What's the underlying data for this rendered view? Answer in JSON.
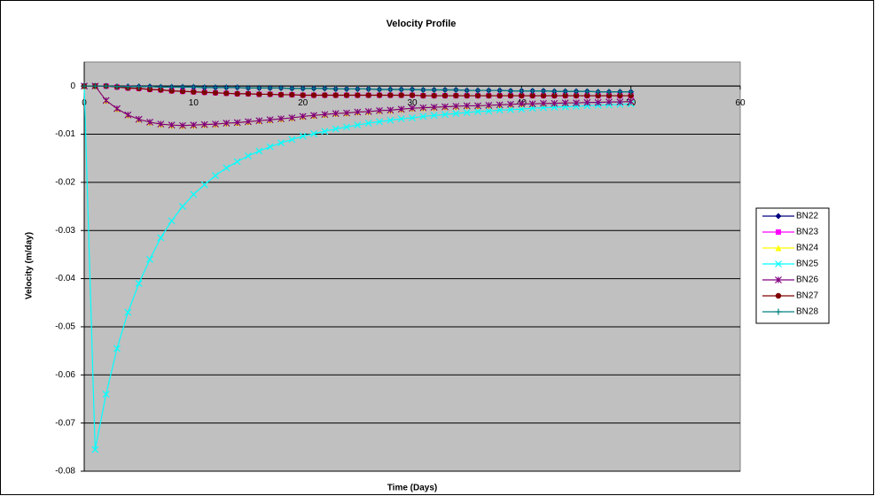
{
  "chart_data": {
    "type": "line",
    "title": "Velocity Profile",
    "x_label": "Time (Days)",
    "y_label": "Velocity (m/day)",
    "x": [
      0,
      1,
      2,
      3,
      4,
      5,
      6,
      7,
      8,
      9,
      10,
      11,
      12,
      13,
      14,
      15,
      16,
      17,
      18,
      19,
      20,
      21,
      22,
      23,
      24,
      25,
      26,
      27,
      28,
      29,
      30,
      31,
      32,
      33,
      34,
      35,
      36,
      37,
      38,
      39,
      40,
      41,
      42,
      43,
      44,
      45,
      46,
      47,
      48,
      49,
      50
    ],
    "xlim": [
      0,
      60
    ],
    "xticks": [
      0,
      10,
      20,
      30,
      40,
      50,
      60
    ],
    "ylim": [
      -0.08,
      0.005
    ],
    "yticks": [
      0,
      -0.01,
      -0.02,
      -0.03,
      -0.04,
      -0.05,
      -0.06,
      -0.07,
      -0.08
    ],
    "grid": true,
    "legend": "right",
    "series": [
      {
        "name": "BN22",
        "color": "#000080",
        "marker": "diamond",
        "values": [
          0,
          0,
          0,
          -0.0001,
          -0.0001,
          -0.0001,
          -0.0001,
          -0.0002,
          -0.0002,
          -0.0002,
          -0.0002,
          -0.0003,
          -0.0003,
          -0.0003,
          -0.0003,
          -0.0004,
          -0.0004,
          -0.0004,
          -0.0004,
          -0.0005,
          -0.0005,
          -0.0005,
          -0.0005,
          -0.0006,
          -0.0006,
          -0.0006,
          -0.0006,
          -0.0007,
          -0.0007,
          -0.0007,
          -0.0007,
          -0.0008,
          -0.0008,
          -0.0008,
          -0.0008,
          -0.0009,
          -0.0009,
          -0.0009,
          -0.0009,
          -0.001,
          -0.001,
          -0.001,
          -0.001,
          -0.0011,
          -0.0011,
          -0.0011,
          -0.0011,
          -0.0012,
          -0.0012,
          -0.0012,
          -0.0012
        ]
      },
      {
        "name": "BN23",
        "color": "#ff00ff",
        "marker": "square",
        "values": [
          0,
          0,
          0,
          -0.0002,
          -0.0004,
          -0.0005,
          -0.0007,
          -0.0008,
          -0.001,
          -0.0011,
          -0.0012,
          -0.0013,
          -0.0014,
          -0.0015,
          -0.0016,
          -0.0016,
          -0.0017,
          -0.0017,
          -0.0018,
          -0.0018,
          -0.0019,
          -0.0019,
          -0.0019,
          -0.0019,
          -0.0019,
          -0.0019,
          -0.0019,
          -0.0019,
          -0.0019,
          -0.0019,
          -0.0019,
          -0.002,
          -0.002,
          -0.002,
          -0.002,
          -0.002,
          -0.002,
          -0.002,
          -0.002,
          -0.002,
          -0.002,
          -0.002,
          -0.002,
          -0.002,
          -0.002,
          -0.002,
          -0.002,
          -0.002,
          -0.002,
          -0.002,
          -0.002
        ]
      },
      {
        "name": "BN24",
        "color": "#ffff00",
        "marker": "triangle",
        "values": [
          0,
          0,
          -0.003,
          -0.0047,
          -0.006,
          -0.0069,
          -0.0075,
          -0.0079,
          -0.0081,
          -0.0082,
          -0.0081,
          -0.008,
          -0.0079,
          -0.0077,
          -0.0076,
          -0.0074,
          -0.0072,
          -0.007,
          -0.0068,
          -0.0066,
          -0.0063,
          -0.0061,
          -0.0059,
          -0.0057,
          -0.0056,
          -0.0054,
          -0.0053,
          -0.0051,
          -0.005,
          -0.0048,
          -0.0046,
          -0.0045,
          -0.0044,
          -0.0043,
          -0.0042,
          -0.0041,
          -0.0041,
          -0.004,
          -0.0039,
          -0.0038,
          -0.0037,
          -0.0037,
          -0.0036,
          -0.0036,
          -0.0035,
          -0.0035,
          -0.0034,
          -0.0034,
          -0.0033,
          -0.0033,
          -0.0032
        ]
      },
      {
        "name": "BN25",
        "color": "#00ffff",
        "marker": "x",
        "values": [
          0,
          -0.0755,
          -0.064,
          -0.0545,
          -0.047,
          -0.041,
          -0.036,
          -0.0315,
          -0.028,
          -0.025,
          -0.0225,
          -0.0205,
          -0.0186,
          -0.017,
          -0.0157,
          -0.0145,
          -0.0135,
          -0.0126,
          -0.0118,
          -0.0111,
          -0.0104,
          -0.0099,
          -0.0094,
          -0.0089,
          -0.0085,
          -0.0081,
          -0.0077,
          -0.0074,
          -0.0071,
          -0.0068,
          -0.0066,
          -0.0063,
          -0.0061,
          -0.0059,
          -0.0057,
          -0.0055,
          -0.0053,
          -0.0052,
          -0.005,
          -0.0049,
          -0.0048,
          -0.0046,
          -0.0045,
          -0.0044,
          -0.0043,
          -0.0042,
          -0.0041,
          -0.004,
          -0.0039,
          -0.0038,
          -0.0037
        ]
      },
      {
        "name": "BN26",
        "color": "#800080",
        "marker": "asterisk",
        "values": [
          0,
          0,
          -0.003,
          -0.0047,
          -0.006,
          -0.0069,
          -0.0075,
          -0.0079,
          -0.0081,
          -0.0082,
          -0.0081,
          -0.008,
          -0.0079,
          -0.0077,
          -0.0076,
          -0.0074,
          -0.0072,
          -0.007,
          -0.0068,
          -0.0066,
          -0.0063,
          -0.0061,
          -0.0059,
          -0.0057,
          -0.0056,
          -0.0054,
          -0.0053,
          -0.0051,
          -0.005,
          -0.0048,
          -0.0046,
          -0.0045,
          -0.0044,
          -0.0043,
          -0.0042,
          -0.0041,
          -0.0041,
          -0.004,
          -0.0039,
          -0.0038,
          -0.0037,
          -0.0037,
          -0.0036,
          -0.0036,
          -0.0035,
          -0.0035,
          -0.0034,
          -0.0034,
          -0.0033,
          -0.0033,
          -0.0032
        ]
      },
      {
        "name": "BN27",
        "color": "#800000",
        "marker": "circle",
        "values": [
          0,
          0,
          0,
          -0.0002,
          -0.0004,
          -0.0005,
          -0.0007,
          -0.0008,
          -0.001,
          -0.0011,
          -0.0012,
          -0.0013,
          -0.0014,
          -0.0015,
          -0.0016,
          -0.0016,
          -0.0017,
          -0.0017,
          -0.0018,
          -0.0018,
          -0.0019,
          -0.0019,
          -0.0019,
          -0.0019,
          -0.0019,
          -0.0019,
          -0.0019,
          -0.0019,
          -0.0019,
          -0.0019,
          -0.0019,
          -0.002,
          -0.002,
          -0.002,
          -0.002,
          -0.002,
          -0.002,
          -0.002,
          -0.002,
          -0.002,
          -0.002,
          -0.002,
          -0.002,
          -0.002,
          -0.002,
          -0.002,
          -0.002,
          -0.002,
          -0.002,
          -0.002,
          -0.002
        ]
      },
      {
        "name": "BN28",
        "color": "#008080",
        "marker": "plus",
        "values": [
          0,
          0,
          0,
          -0.0001,
          -0.0001,
          -0.0001,
          -0.0001,
          -0.0002,
          -0.0002,
          -0.0002,
          -0.0002,
          -0.0003,
          -0.0003,
          -0.0003,
          -0.0003,
          -0.0004,
          -0.0004,
          -0.0004,
          -0.0004,
          -0.0005,
          -0.0005,
          -0.0005,
          -0.0005,
          -0.0006,
          -0.0006,
          -0.0006,
          -0.0006,
          -0.0007,
          -0.0007,
          -0.0007,
          -0.0007,
          -0.0008,
          -0.0008,
          -0.0008,
          -0.0008,
          -0.0009,
          -0.0009,
          -0.0009,
          -0.0009,
          -0.001,
          -0.001,
          -0.001,
          -0.001,
          -0.0011,
          -0.0011,
          -0.0011,
          -0.0011,
          -0.0012,
          -0.0012,
          -0.0012,
          -0.0012
        ]
      }
    ]
  }
}
